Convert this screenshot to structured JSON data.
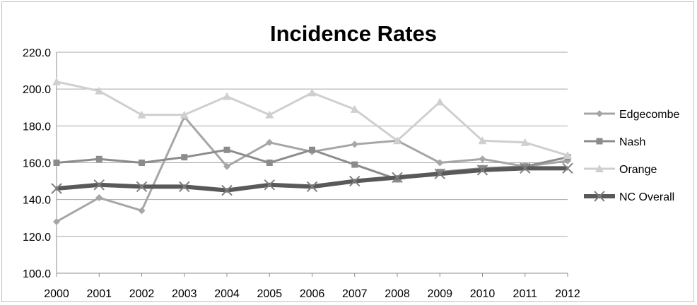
{
  "chart_data": {
    "type": "line",
    "title": "Incidence Rates",
    "xlabel": "",
    "ylabel": "",
    "x": [
      "2000",
      "2001",
      "2002",
      "2003",
      "2004",
      "2005",
      "2006",
      "2007",
      "2008",
      "2009",
      "2010",
      "2011",
      "2012"
    ],
    "ylim": [
      100,
      220
    ],
    "yticks": [
      "220.0",
      "200.0",
      "180.0",
      "160.0",
      "140.0",
      "120.0",
      "100.0"
    ],
    "grid": true,
    "legend_position": "right",
    "series": [
      {
        "name": "Edgecombe",
        "color": "#a6a6a6",
        "marker": "diamond",
        "values": [
          128,
          141,
          134,
          185,
          158,
          171,
          166,
          170,
          172,
          160,
          162,
          158,
          161
        ]
      },
      {
        "name": "Nash",
        "color": "#8c8c8c",
        "marker": "square",
        "values": [
          160,
          162,
          160,
          163,
          167,
          160,
          167,
          159,
          151,
          155,
          157,
          158,
          163
        ]
      },
      {
        "name": "Orange",
        "color": "#cfcfcf",
        "marker": "triangle",
        "values": [
          204,
          199,
          186,
          186,
          196,
          186,
          198,
          189,
          172,
          193,
          172,
          171,
          164
        ]
      },
      {
        "name": "NC Overall",
        "color": "#595959",
        "marker": "x",
        "values": [
          146,
          148,
          147,
          147,
          145,
          148,
          147,
          150,
          152,
          154,
          156,
          157,
          157
        ]
      }
    ]
  }
}
